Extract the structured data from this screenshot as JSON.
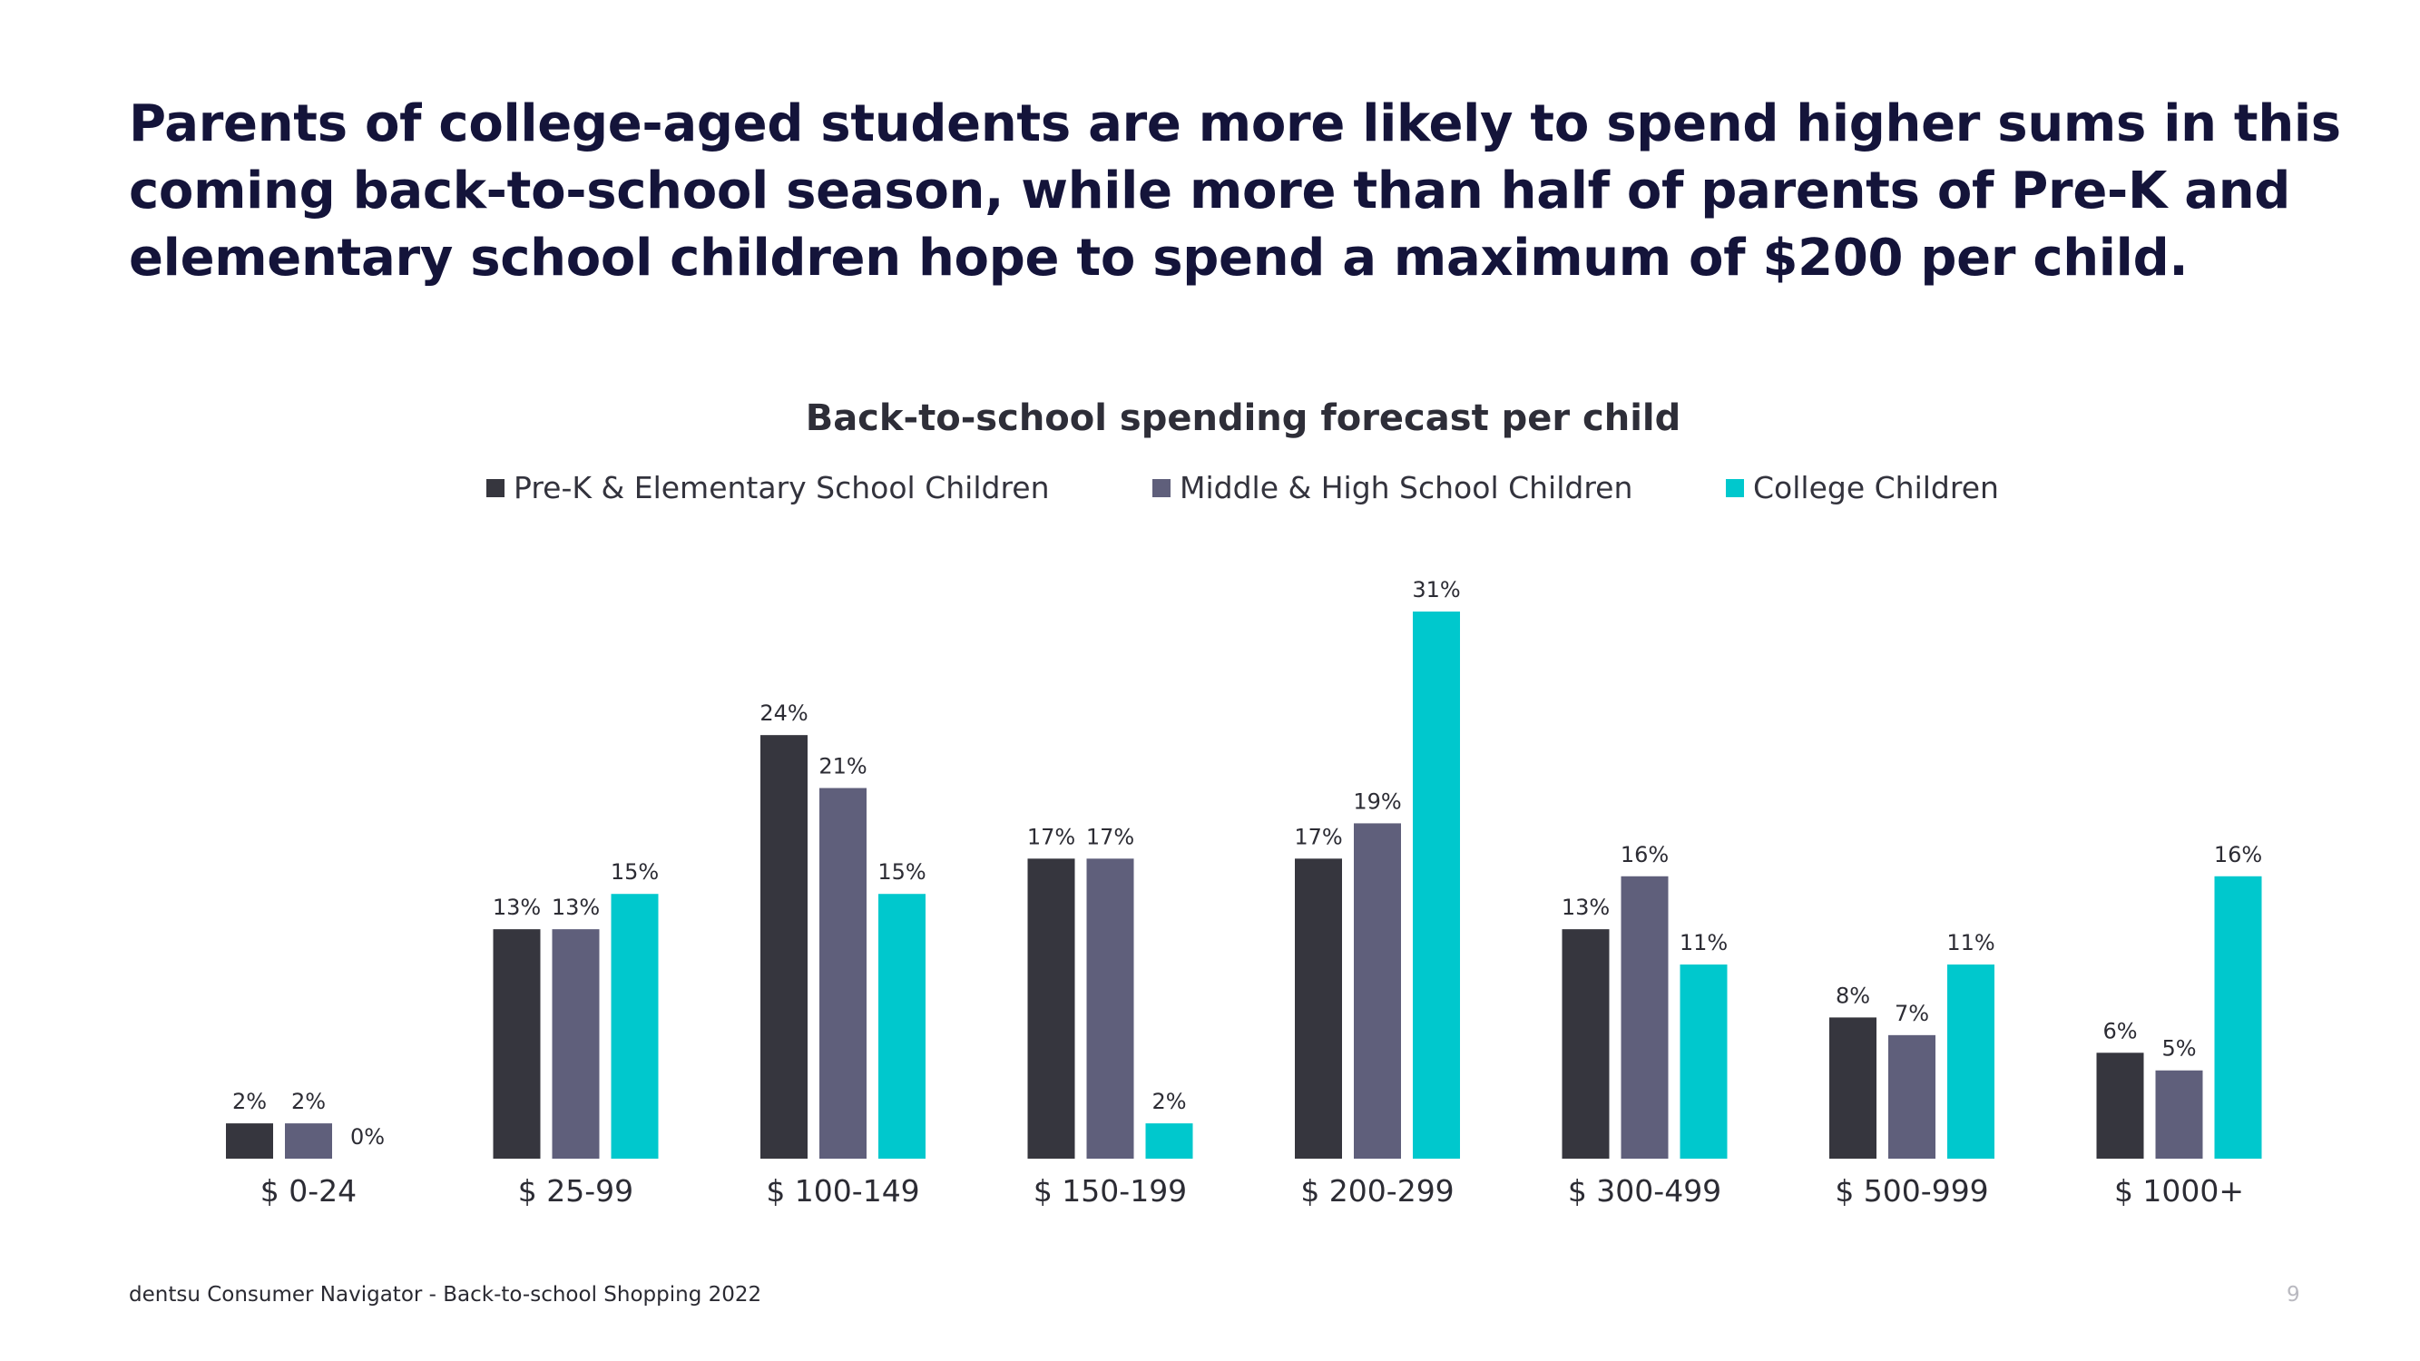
{
  "headline": {
    "line1": "Parents of college-aged students are more likely to spend higher sums in this",
    "line2": "coming back-to-school season, while more than half of parents of Pre-K and",
    "line3": "elementary school children hope to spend a maximum of $200 per child."
  },
  "chart_data": {
    "type": "bar",
    "title": "Back-to-school spending forecast per child",
    "categories": [
      "$ 0-24",
      "$ 25-99",
      "$ 100-149",
      "$ 150-199",
      "$ 200-299",
      "$ 300-499",
      "$ 500-999",
      "$ 1000+"
    ],
    "series": [
      {
        "name": "Pre-K & Elementary School Children",
        "color": "#36363e",
        "values": [
          2,
          13,
          24,
          17,
          17,
          13,
          8,
          6
        ]
      },
      {
        "name": "Middle & High School Children",
        "color": "#5f5f7b",
        "values": [
          2,
          13,
          21,
          17,
          19,
          16,
          7,
          5
        ]
      },
      {
        "name": "College Children",
        "color": "#00c8cd",
        "values": [
          0,
          15,
          15,
          2,
          31,
          11,
          11,
          16
        ]
      }
    ],
    "value_suffix": "%",
    "xlabel": "",
    "ylabel": "",
    "ylim": [
      0,
      31
    ],
    "legend_position": "top",
    "grid": false
  },
  "footer": {
    "source": "dentsu Consumer Navigator - Back-to-school Shopping 2022",
    "page_number": "9"
  }
}
